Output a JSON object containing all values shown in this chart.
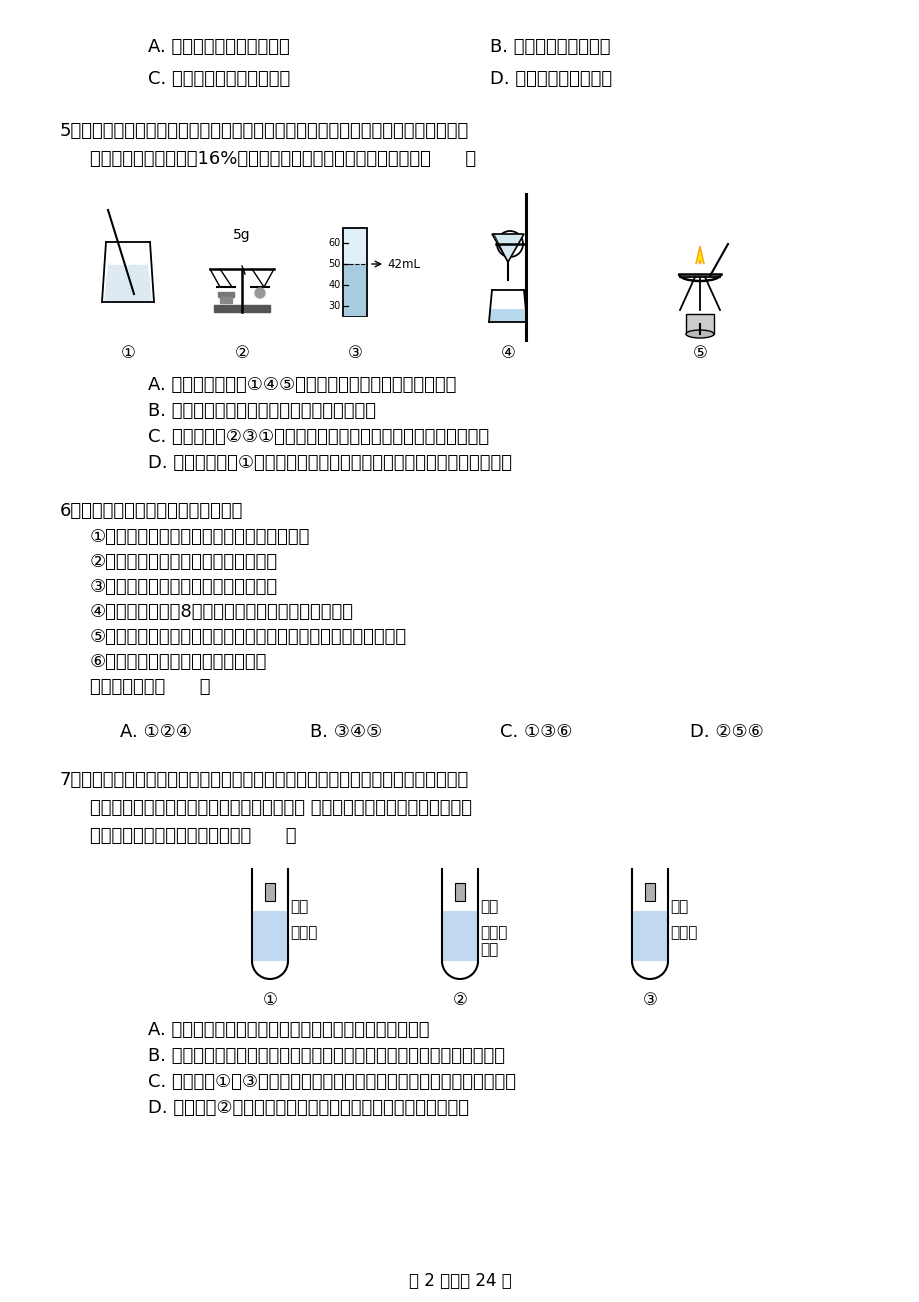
{
  "page_bg": "#ffffff",
  "text_color": "#000000",
  "page_width": 9.2,
  "page_height": 13.02,
  "q4_options_row1": [
    "A. 逐步淘汰高耗水生产工艺",
    "B. 农作物采用大水漫灌"
  ],
  "q4_options_row2": [
    "C. 生活污水集中处理后排放",
    "D. 加强对水资源的监测"
  ],
  "q5_line1": "5．用如图操作可完成甲、乙两个实验．甲实验为粗盐中难溶性杂质的去除，乙实验为",
  "q5_line2": "配制溶质的质量分数为16%的氯化钠溶液．下列说法中，正确的是（      ）",
  "q5_answers": [
    "A. 甲实验的步骤是①④⑤，其中去除杂质的关键一步是蒸发",
    "B. 甲实验各步操作中的玻璃棒都是用来搅拌的",
    "C. 乙实验按照②③①的步骤进行操作，会导致配制的溶液浓度偏小",
    "D. 乙实验中，若①所用烧杯刚刚用清水洗过，会导致配制的溶液浓度偏大"
  ],
  "q6_stem": "6．某同学梳理并归纳了以下知识点：",
  "q6_points": [
    "①质子数相同的两种粒子一定属于同种元素；",
    "②过氧化氢是由氢分子和氧分子构成；",
    "③化学反应前后，元素种类一定不变；",
    "④最外层电子数为8的粒子不一定是稀有气体的原子；",
    "⑤无论是吸入的空气还是呼出的气体中含量最多的气体都是氮气；",
    "⑥纯净物一定是由同种分子构成的．",
    "其中正确的是（      ）"
  ],
  "q6_options": [
    "A. ①②④",
    "B. ③④⑤",
    "C. ①③⑥",
    "D. ②⑤⑥"
  ],
  "q7_line1": "7．某化学兴趣小组为探究铁、铜、锌、银的金属活动性顺序，设计了下图所示的三个",
  "q7_line2": "实验（其中金属均已打磨，且形状、大小相同 所用盐酸的溶质质量分数、用量也",
  "q7_line3": "相同）。下列判断中，错误的是（      ）",
  "q7_tube_labels": [
    [
      "铁片",
      "稀盐酸"
    ],
    [
      "铜片",
      "硝酸银\n溶液"
    ],
    [
      "锌片",
      "稀盐酸"
    ]
  ],
  "q7_tube_nums": [
    "①",
    "②",
    "③"
  ],
  "q7_answers": [
    "A. 通过上述三个实验，不能判断出四种金属的活动性顺序",
    "B. 若增加一个铜锌活动性比较的实验，则可判断出四种金属的活动性顺序",
    "C. 通过实验①和③的反应剧烈程度，可以判断出铁和锌的金属活动性强弱",
    "D. 通过实验②的反应现象，可以判断出铜和银的金属活动性强弱"
  ],
  "footer": "第 2 页，共 24 页",
  "apparatus_labels": [
    "①",
    "②",
    "③",
    "④",
    "⑤"
  ],
  "grad_cyl_labels": [
    "60",
    "50",
    "42mL",
    "40",
    "30"
  ],
  "balance_label": "5g"
}
